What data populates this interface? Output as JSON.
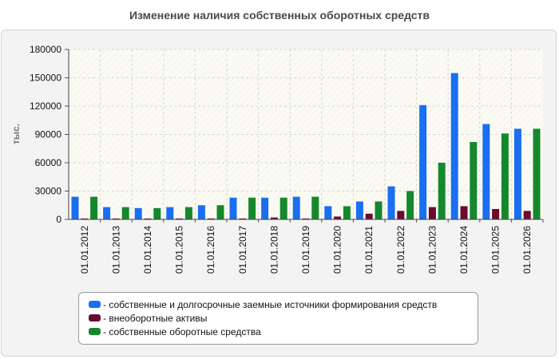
{
  "chart_data": {
    "type": "bar",
    "title": "Изменение наличия собственных оборотных средств",
    "ylabel": "тыс.",
    "xlabel": "",
    "ylim": [
      0,
      180000
    ],
    "yticks": [
      "180000",
      "150000",
      "120000",
      "90000",
      "60000",
      "30000",
      "0"
    ],
    "grid": true,
    "legend_position": "bottom",
    "categories": [
      "01.01.2012",
      "01.01.2013",
      "01.01.2014",
      "01.01.2015",
      "01.01.2016",
      "01.01.2017",
      "01.01.2018",
      "01.01.2019",
      "01.01.2020",
      "01.01.2021",
      "01.01.2022",
      "01.01.2023",
      "01.01.2024",
      "01.01.2025",
      "01.01.2026"
    ],
    "series": [
      {
        "name": "собственные и долгосрочные заемные источники формирования средств",
        "color": "#1a6ef0",
        "values": [
          24000,
          13000,
          12000,
          13000,
          15000,
          23000,
          23000,
          24000,
          14000,
          19000,
          35000,
          121000,
          155000,
          101000,
          96000
        ]
      },
      {
        "name": "внеоборотные активы",
        "color": "#6b0a2e",
        "values": [
          1000,
          1000,
          1000,
          1000,
          1000,
          1000,
          2000,
          1000,
          3000,
          6000,
          9000,
          13000,
          14000,
          11000,
          9000
        ]
      },
      {
        "name": "собственные оборотные средства",
        "color": "#15882c",
        "values": [
          24000,
          13000,
          12000,
          13000,
          15000,
          23000,
          23000,
          24000,
          14000,
          19000,
          30000,
          60000,
          82000,
          91000,
          96000
        ]
      }
    ]
  }
}
